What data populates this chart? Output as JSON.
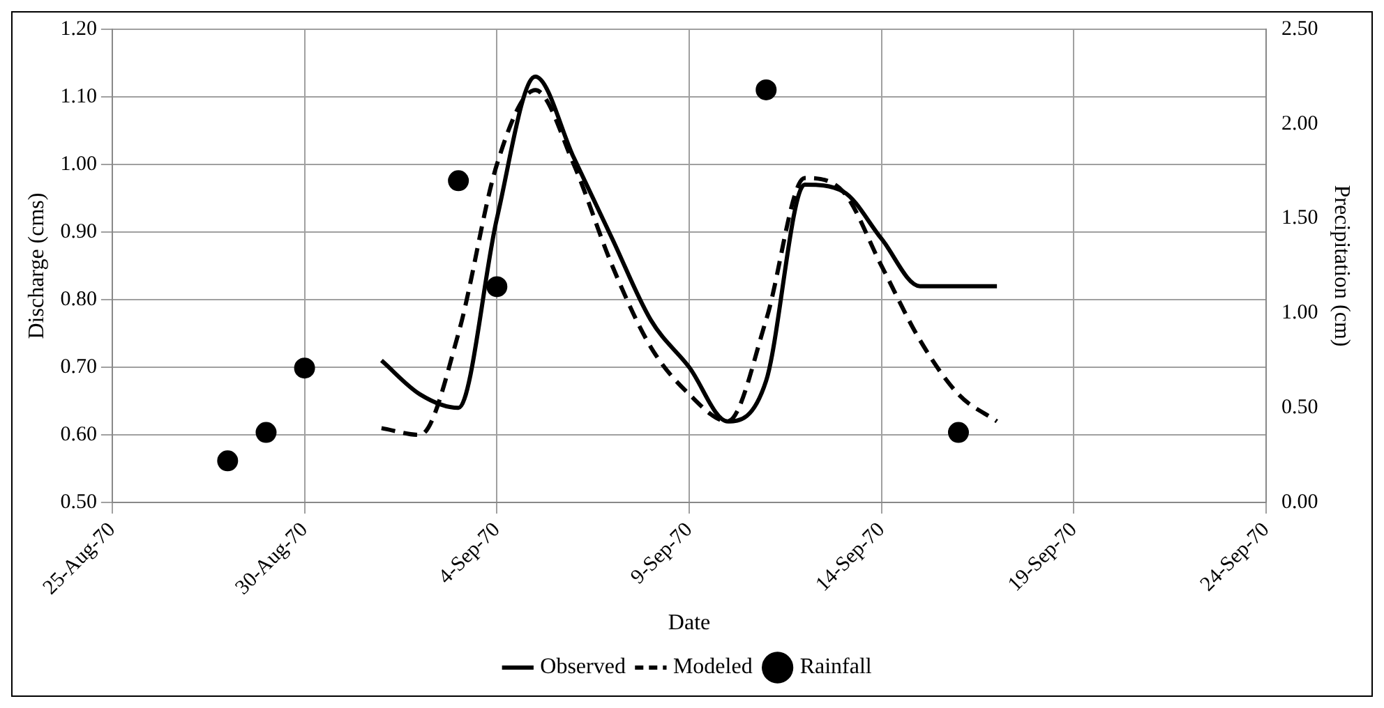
{
  "chart_data": {
    "type": "line",
    "xlabel": "Date",
    "ylabel": "Discharge (cms)",
    "y2label": "Precipitation (cm)",
    "xlim": [
      "1970-08-25",
      "1970-09-24"
    ],
    "xticks": [
      {
        "value": "1970-08-25",
        "label": "25-Aug-70"
      },
      {
        "value": "1970-08-30",
        "label": "30-Aug-70"
      },
      {
        "value": "1970-09-04",
        "label": "4-Sep-70"
      },
      {
        "value": "1970-09-09",
        "label": "9-Sep-70"
      },
      {
        "value": "1970-09-14",
        "label": "14-Sep-70"
      },
      {
        "value": "1970-09-19",
        "label": "19-Sep-70"
      },
      {
        "value": "1970-09-24",
        "label": "24-Sep-70"
      }
    ],
    "ylim": [
      0.5,
      1.2
    ],
    "yticks": [
      {
        "value": 0.5,
        "label": "0.50"
      },
      {
        "value": 0.6,
        "label": "0.60"
      },
      {
        "value": 0.7,
        "label": "0.70"
      },
      {
        "value": 0.8,
        "label": "0.80"
      },
      {
        "value": 0.9,
        "label": "0.90"
      },
      {
        "value": 1.0,
        "label": "1.00"
      },
      {
        "value": 1.1,
        "label": "1.10"
      },
      {
        "value": 1.2,
        "label": "1.20"
      }
    ],
    "y2lim": [
      0,
      2.5
    ],
    "y2ticks": [
      {
        "value": 0,
        "label": "0.00"
      },
      {
        "value": 0.5,
        "label": "0.50"
      },
      {
        "value": 1.0,
        "label": "1.00"
      },
      {
        "value": 1.5,
        "label": "1.50"
      },
      {
        "value": 2.0,
        "label": "2.00"
      },
      {
        "value": 2.5,
        "label": "2.50"
      }
    ],
    "grid": true,
    "legend": "bottom",
    "series": [
      {
        "name": "Observed",
        "color": "#000000",
        "line_style": "solid",
        "marker": "none",
        "x": [
          "1970-09-01",
          "1970-09-02",
          "1970-09-03",
          "1970-09-04",
          "1970-09-05",
          "1970-09-06",
          "1970-09-07",
          "1970-09-08",
          "1970-09-09",
          "1970-09-10",
          "1970-09-11",
          "1970-09-12",
          "1970-09-13",
          "1970-09-14",
          "1970-09-15",
          "1970-09-16",
          "1970-09-17"
        ],
        "values": [
          0.71,
          0.66,
          0.64,
          0.92,
          1.13,
          1.01,
          0.89,
          0.77,
          0.7,
          0.62,
          0.68,
          0.97,
          0.96,
          0.89,
          0.82,
          0.82,
          0.82
        ]
      },
      {
        "name": "Modeled",
        "color": "#000000",
        "line_style": "dashed",
        "marker": "none",
        "x": [
          "1970-09-01",
          "1970-09-02",
          "1970-09-03",
          "1970-09-04",
          "1970-09-05",
          "1970-09-06",
          "1970-09-07",
          "1970-09-08",
          "1970-09-09",
          "1970-09-10",
          "1970-09-11",
          "1970-09-12",
          "1970-09-13",
          "1970-09-14",
          "1970-09-15",
          "1970-09-16",
          "1970-09-17"
        ],
        "values": [
          0.61,
          0.6,
          0.75,
          1.0,
          1.11,
          1.0,
          0.85,
          0.73,
          0.66,
          0.62,
          0.77,
          0.98,
          0.96,
          0.85,
          0.74,
          0.66,
          0.62
        ]
      },
      {
        "name": "Rainfall",
        "type": "scatter",
        "axis": "y2",
        "color": "#000000",
        "marker": "circle",
        "x": [
          "1970-08-28",
          "1970-08-29",
          "1970-08-30",
          "1970-09-03",
          "1970-09-04",
          "1970-09-11",
          "1970-09-16"
        ],
        "values": [
          0.22,
          0.37,
          0.71,
          1.7,
          1.14,
          2.18,
          0.37
        ]
      }
    ]
  }
}
